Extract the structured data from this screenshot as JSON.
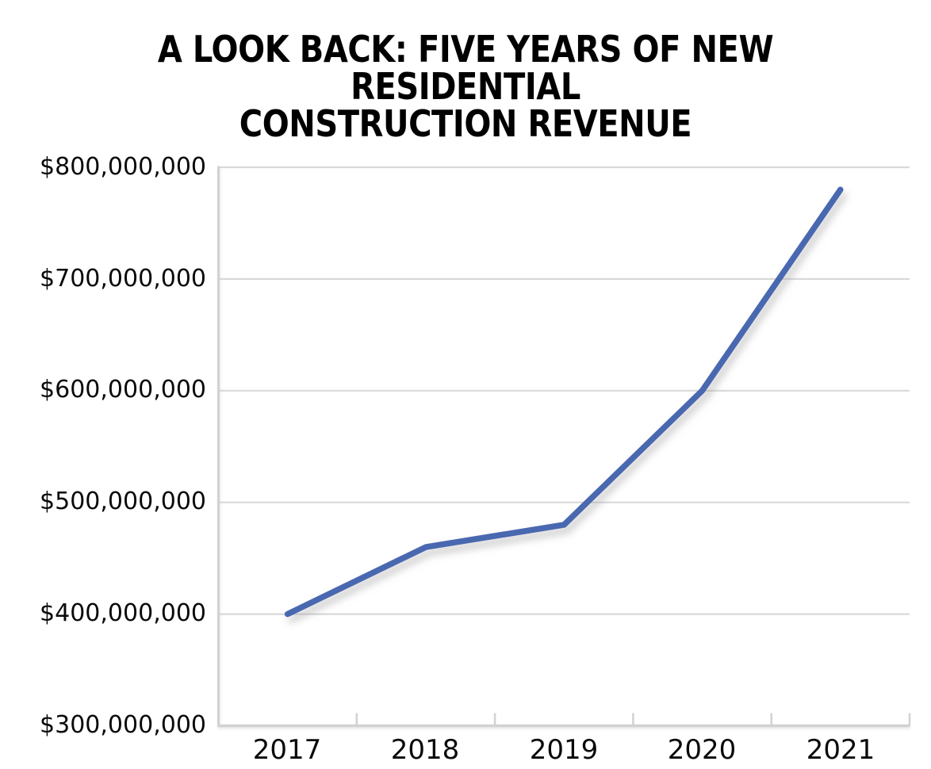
{
  "title_lines": [
    "A LOOK BACK: FIVE YEARS OF NEW RESIDENTIAL",
    "CONSTRUCTION REVENUE"
  ],
  "chart_data": {
    "type": "line",
    "title": "A LOOK BACK: FIVE YEARS OF NEW RESIDENTIAL CONSTRUCTION REVENUE",
    "categories": [
      "2017",
      "2018",
      "2019",
      "2020",
      "2021"
    ],
    "values": [
      400000000,
      460000000,
      480000000,
      600000000,
      780000000
    ],
    "xlabel": "",
    "ylabel": "",
    "y_axis": {
      "min": 300000000,
      "max": 800000000,
      "tick_step": 100000000,
      "tick_labels": [
        "$800,000,000",
        "$700,000,000",
        "$600,000,000",
        "$500,000,000",
        "$400,000,000",
        "$300,000,000"
      ]
    },
    "grid": true,
    "legend": false,
    "colors": {
      "line": "#4a67b0",
      "gridline": "#d9d9d9",
      "axis": "#d2d2d2",
      "text": "#0a0a0a"
    }
  }
}
